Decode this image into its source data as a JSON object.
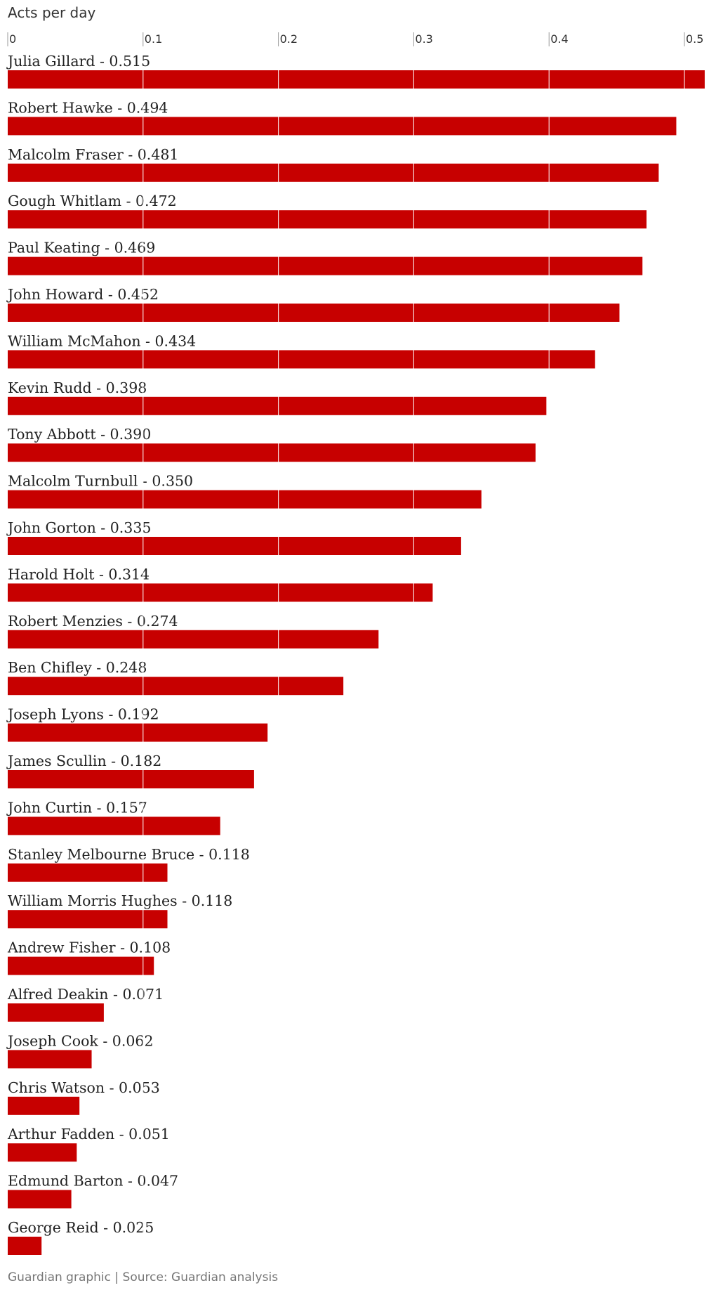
{
  "chart_data": {
    "type": "bar",
    "orientation": "horizontal",
    "title": "",
    "xlabel": "Acts per day",
    "ylabel": "",
    "xlim": [
      0,
      0.515
    ],
    "xticks": [
      0,
      0.1,
      0.2,
      0.3,
      0.4,
      0.5
    ],
    "xtick_labels": [
      "0",
      "0.1",
      "0.2",
      "0.3",
      "0.4",
      "0.5"
    ],
    "grid": true,
    "bar_color": "#c70000",
    "categories": [
      "Julia Gillard",
      "Robert Hawke",
      "Malcolm Fraser",
      "Gough Whitlam",
      "Paul Keating",
      "John Howard",
      "William McMahon",
      "Kevin Rudd",
      "Tony Abbott",
      "Malcolm Turnbull",
      "John Gorton",
      "Harold Holt",
      "Robert Menzies",
      "Ben Chifley",
      "Joseph Lyons",
      "James Scullin",
      "John Curtin",
      "Stanley Melbourne Bruce",
      "William Morris Hughes",
      "Andrew Fisher",
      "Alfred Deakin",
      "Joseph Cook",
      "Chris Watson",
      "Arthur Fadden",
      "Edmund Barton",
      "George Reid"
    ],
    "values": [
      0.515,
      0.494,
      0.481,
      0.472,
      0.469,
      0.452,
      0.434,
      0.398,
      0.39,
      0.35,
      0.335,
      0.314,
      0.274,
      0.248,
      0.192,
      0.182,
      0.157,
      0.118,
      0.118,
      0.108,
      0.071,
      0.062,
      0.053,
      0.051,
      0.047,
      0.025
    ],
    "labels": [
      "Julia Gillard - 0.515",
      "Robert Hawke - 0.494",
      "Malcolm Fraser - 0.481",
      "Gough Whitlam - 0.472",
      "Paul Keating - 0.469",
      "John Howard - 0.452",
      "William McMahon - 0.434",
      "Kevin Rudd - 0.398",
      "Tony Abbott - 0.390",
      "Malcolm Turnbull - 0.350",
      "John Gorton - 0.335",
      "Harold Holt - 0.314",
      "Robert Menzies - 0.274",
      "Ben Chifley - 0.248",
      "Joseph Lyons - 0.192",
      "James Scullin - 0.182",
      "John Curtin - 0.157",
      "Stanley Melbourne Bruce - 0.118",
      "William Morris Hughes - 0.118",
      "Andrew Fisher - 0.108",
      "Alfred Deakin - 0.071",
      "Joseph Cook - 0.062",
      "Chris Watson - 0.053",
      "Arthur Fadden - 0.051",
      "Edmund Barton - 0.047",
      "George Reid - 0.025"
    ]
  },
  "footer": {
    "source": "Guardian graphic | Source: Guardian analysis"
  }
}
